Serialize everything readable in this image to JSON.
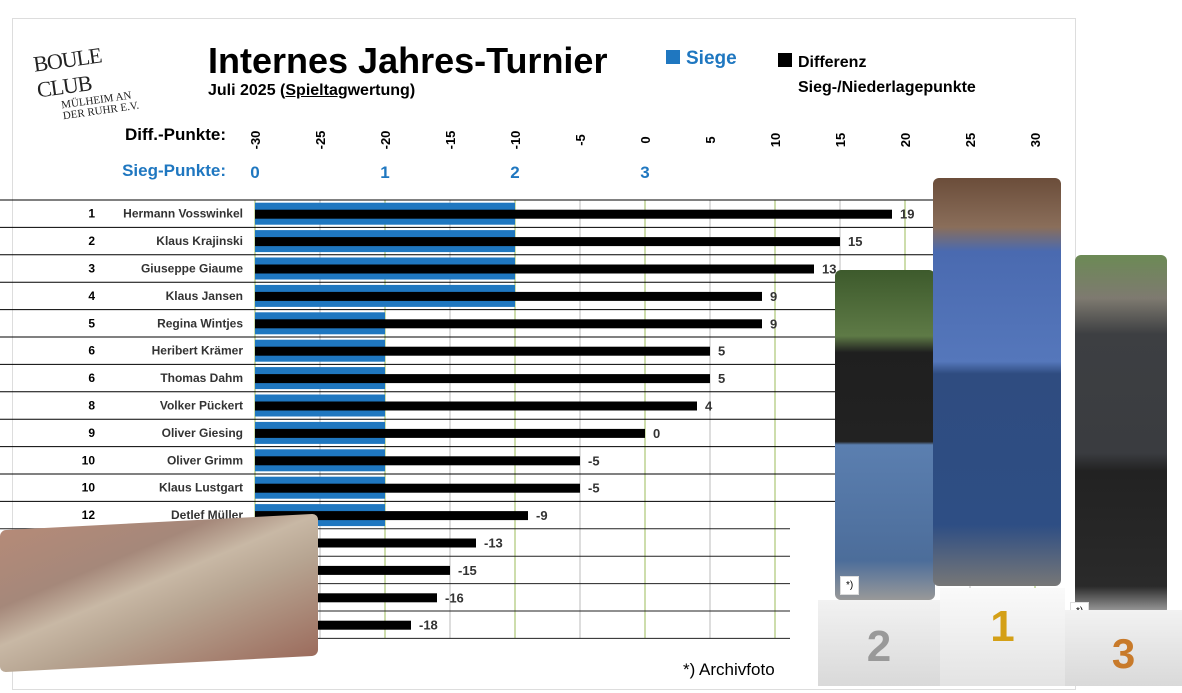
{
  "logo": {
    "line1": "BOULE CLUB",
    "line2": "MÜLHEIM AN",
    "line3": "DER RUHR E.V."
  },
  "title": "Internes Jahres-Turnier",
  "subtitle_pre": "Juli 2025  (",
  "subtitle_u": "Spieltag",
  "subtitle_post": "wertung)",
  "legend": {
    "siege": "Siege",
    "diff1": "Differenz",
    "diff2": "Sieg-/Niederlagepunkte"
  },
  "colors": {
    "siege": "#1f77c0",
    "diff": "#000000"
  },
  "footnote": "*) Archivfoto",
  "photo_note": "*)",
  "podium": [
    "2",
    "1",
    "3"
  ],
  "chart_data": {
    "type": "bar",
    "orientation": "horizontal",
    "diff_axis_label": "Diff.-Punkte:",
    "sieg_axis_label": "Sieg-Punkte:",
    "diff_ticks": [
      -30,
      -25,
      -20,
      -15,
      -10,
      -5,
      0,
      5,
      10,
      15,
      20,
      25,
      30
    ],
    "diff_range": [
      -30,
      30
    ],
    "sieg_ticks": [
      0,
      1,
      2,
      3
    ],
    "ranks": [
      "1",
      "2",
      "3",
      "4",
      "5",
      "6",
      "6",
      "8",
      "9",
      "10",
      "10",
      "12",
      "",
      "",
      "",
      ""
    ],
    "names": [
      "Hermann Vosswinkel",
      "Klaus Krajinski",
      "Giuseppe Giaume",
      "Klaus Jansen",
      "Regina Wintjes",
      "Heribert Krämer",
      "Thomas Dahm",
      "Volker Pückert",
      "Oliver Giesing",
      "Oliver Grimm",
      "Klaus Lustgart",
      "Detlef Müller",
      "",
      "",
      "",
      ""
    ],
    "series": [
      {
        "name": "Siege",
        "values": [
          2,
          2,
          2,
          2,
          1,
          1,
          1,
          1,
          1,
          1,
          1,
          1,
          null,
          null,
          null,
          null
        ]
      },
      {
        "name": "Differenz",
        "values": [
          19,
          15,
          13,
          9,
          9,
          5,
          5,
          4,
          0,
          -5,
          -5,
          -9,
          -13,
          -15,
          -16,
          -18
        ]
      }
    ]
  }
}
